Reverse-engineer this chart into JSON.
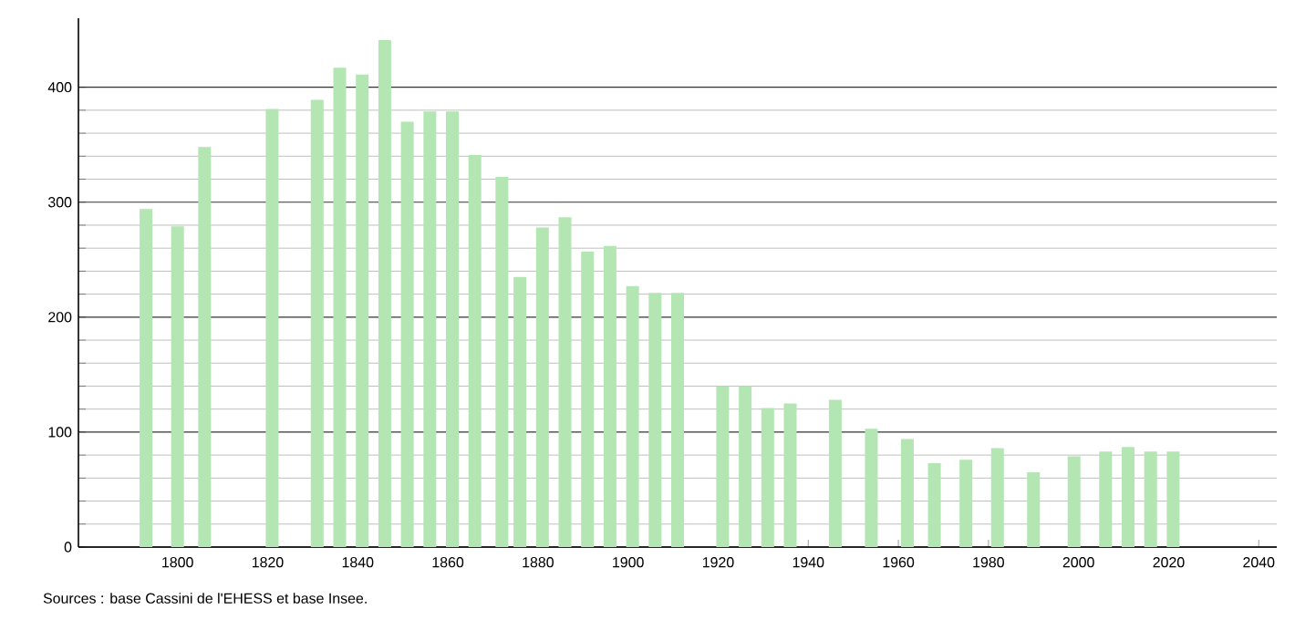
{
  "chart_data": {
    "type": "bar",
    "color": "#b3e6b3",
    "x": [
      1793,
      1800,
      1806,
      1821,
      1831,
      1836,
      1841,
      1846,
      1851,
      1856,
      1861,
      1866,
      1872,
      1876,
      1881,
      1886,
      1891,
      1896,
      1901,
      1906,
      1911,
      1921,
      1926,
      1931,
      1936,
      1946,
      1954,
      1962,
      1968,
      1975,
      1982,
      1990,
      1999,
      2006,
      2011,
      2016,
      2021
    ],
    "values": [
      294,
      279,
      348,
      381,
      389,
      417,
      411,
      441,
      370,
      379,
      379,
      341,
      322,
      235,
      278,
      287,
      257,
      262,
      227,
      221,
      221,
      140,
      140,
      121,
      125,
      128,
      103,
      94,
      73,
      76,
      86,
      65,
      79,
      83,
      87,
      83,
      83
    ],
    "xlim": [
      1778,
      2044
    ],
    "ylim": [
      0,
      460
    ],
    "xticks": [
      1800,
      1820,
      1840,
      1860,
      1880,
      1900,
      1920,
      1940,
      1960,
      1980,
      2000,
      2020,
      2040
    ],
    "yticks": [
      0,
      100,
      200,
      300,
      400
    ],
    "grid": "y",
    "annotations": [
      "Sources : base Cassini de l'EHESS et base Insee."
    ]
  }
}
